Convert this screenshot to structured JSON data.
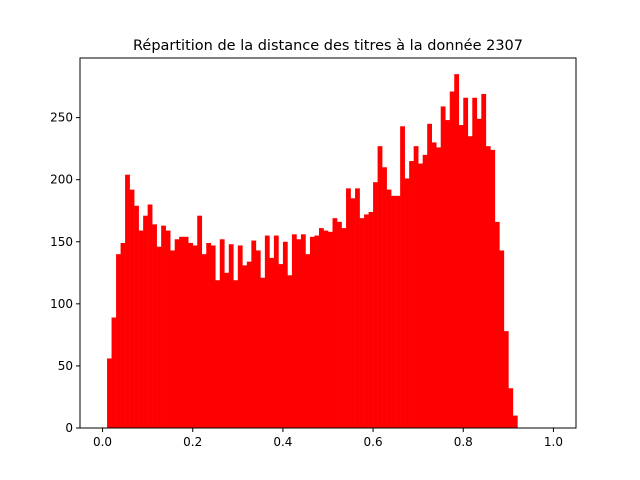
{
  "chart_data": {
    "type": "histogram",
    "title": "Répartition de la distance des titres à la donnée 2307",
    "xlabel": "",
    "ylabel": "",
    "xlim": [
      -0.05,
      1.05
    ],
    "ylim": [
      0,
      298
    ],
    "x_ticks": [
      0.0,
      0.2,
      0.4,
      0.6,
      0.8,
      1.0
    ],
    "x_tick_labels": [
      "0.0",
      "0.2",
      "0.4",
      "0.6",
      "0.8",
      "1.0"
    ],
    "y_ticks": [
      0,
      50,
      100,
      150,
      200,
      250
    ],
    "y_tick_labels": [
      "0",
      "50",
      "100",
      "150",
      "200",
      "250"
    ],
    "bar_color": "#ff0000",
    "grid": false,
    "bin_range": [
      0.0,
      1.0
    ],
    "bin_count": 100,
    "values": [
      0,
      56,
      89,
      140,
      149,
      204,
      192,
      179,
      159,
      171,
      180,
      164,
      146,
      163,
      159,
      143,
      152,
      154,
      154,
      149,
      147,
      171,
      140,
      149,
      147,
      119,
      152,
      125,
      148,
      119,
      147,
      131,
      134,
      151,
      143,
      121,
      155,
      137,
      155,
      132,
      150,
      123,
      156,
      152,
      156,
      140,
      154,
      155,
      161,
      159,
      158,
      169,
      166,
      161,
      193,
      185,
      193,
      169,
      172,
      174,
      198,
      227,
      210,
      192,
      187,
      187,
      243,
      201,
      215,
      227,
      213,
      220,
      245,
      230,
      226,
      259,
      248,
      271,
      285,
      244,
      266,
      235,
      266,
      249,
      269,
      227,
      224,
      166,
      143,
      78,
      32,
      10,
      0,
      0,
      0,
      0,
      0,
      0,
      0,
      0
    ]
  }
}
